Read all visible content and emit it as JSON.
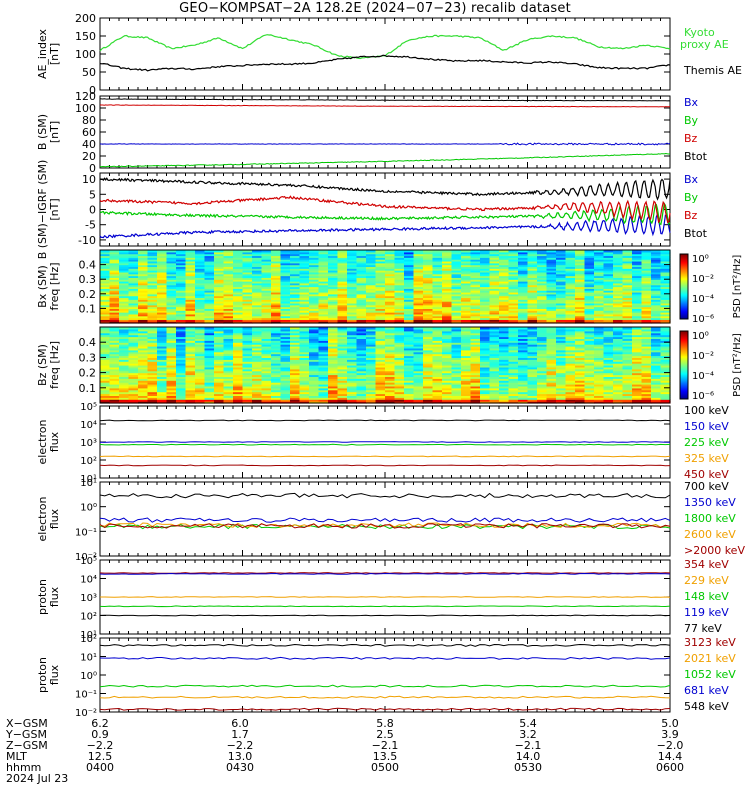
{
  "title": "GEO−KOMPSAT−2A 128.2E (2024−07−23) recalib dataset",
  "colors": {
    "black": "#000000",
    "green": "#00c800",
    "lightgreen": "#33ee33",
    "red": "#d00000",
    "blue": "#0000d0",
    "orange": "#f0a000",
    "darkred": "#a00000",
    "kyoto": "#33dd33"
  },
  "chart_data": [
    {
      "type": "line",
      "panel": "ae_index",
      "ylabel": "AE_index [nT]",
      "ylim": [
        0,
        200
      ],
      "yticks": [
        0,
        50,
        100,
        150,
        200
      ],
      "series": [
        {
          "name": "Kyoto proxy AE",
          "color": "#33dd33",
          "x": [
            0,
            5,
            10,
            15,
            20,
            25,
            30,
            35,
            40,
            45,
            50,
            55,
            60,
            65,
            70,
            75,
            80,
            85,
            90,
            95,
            100,
            105,
            110,
            115,
            120
          ],
          "y": [
            110,
            150,
            145,
            115,
            125,
            145,
            115,
            155,
            140,
            125,
            95,
            88,
            95,
            140,
            150,
            150,
            145,
            110,
            140,
            150,
            145,
            120,
            115,
            125,
            115
          ]
        },
        {
          "name": "Themis AE",
          "color": "#000000",
          "x": [
            0,
            5,
            10,
            15,
            20,
            25,
            30,
            35,
            40,
            45,
            50,
            55,
            60,
            65,
            70,
            75,
            80,
            85,
            90,
            95,
            100,
            105,
            110,
            115,
            120
          ],
          "y": [
            75,
            60,
            55,
            60,
            58,
            65,
            68,
            72,
            72,
            75,
            85,
            92,
            95,
            92,
            85,
            80,
            82,
            78,
            75,
            78,
            72,
            62,
            60,
            60,
            70
          ]
        }
      ]
    },
    {
      "type": "line",
      "panel": "b_sm",
      "ylabel": "B (SM) [nT]",
      "ylim": [
        0,
        120
      ],
      "yticks": [
        0,
        20,
        40,
        60,
        80,
        100,
        120
      ],
      "series": [
        {
          "name": "Bx",
          "color": "#0000d0",
          "x": [
            0,
            120
          ],
          "y": [
            40,
            40
          ]
        },
        {
          "name": "By",
          "color": "#00c800",
          "x": [
            0,
            30,
            60,
            90,
            120
          ],
          "y": [
            2,
            6,
            11,
            17,
            24
          ]
        },
        {
          "name": "Bz",
          "color": "#d00000",
          "x": [
            0,
            60,
            120
          ],
          "y": [
            105,
            103,
            102
          ]
        },
        {
          "name": "Btot",
          "color": "#000000",
          "x": [
            0,
            60,
            120
          ],
          "y": [
            115,
            113,
            112
          ]
        }
      ]
    },
    {
      "type": "line",
      "panel": "b_minus_igrf",
      "ylabel": "B (SM)−IGRF (SM) [nT]",
      "ylim": [
        -12,
        12
      ],
      "yticks": [
        -10,
        -5,
        0,
        5,
        10
      ],
      "series": [
        {
          "name": "Bx",
          "color": "#0000d0",
          "x": [
            0,
            20,
            40,
            60,
            80,
            100,
            120
          ],
          "y": [
            -9,
            -7.5,
            -7,
            -6.5,
            -6,
            -5.5,
            -5
          ]
        },
        {
          "name": "By",
          "color": "#00c800",
          "x": [
            0,
            20,
            40,
            60,
            80,
            100,
            120
          ],
          "y": [
            -1,
            -2,
            -2.5,
            -3,
            -2.5,
            -2,
            -1.5
          ]
        },
        {
          "name": "Bz",
          "color": "#d00000",
          "x": [
            0,
            20,
            40,
            60,
            80,
            100,
            120
          ],
          "y": [
            3,
            2,
            4,
            1,
            0,
            1,
            -1
          ]
        },
        {
          "name": "Btot",
          "color": "#000000",
          "x": [
            0,
            20,
            40,
            60,
            80,
            100,
            120
          ],
          "y": [
            10,
            9,
            8,
            6,
            5,
            6,
            7
          ]
        }
      ]
    },
    {
      "type": "heatmap",
      "panel": "bx_psd",
      "ylabel": "Bx (SM) freq [Hz]",
      "ylim": [
        0,
        0.5
      ],
      "yticks": [
        0.1,
        0.2,
        0.3,
        0.4
      ],
      "colorbar_label": "PSD [nT²/Hz]",
      "colorbar_ticks": [
        "10⁰",
        "10⁻²",
        "10⁻⁴",
        "10⁻⁶"
      ]
    },
    {
      "type": "heatmap",
      "panel": "bz_psd",
      "ylabel": "Bz (SM) freq [Hz]",
      "ylim": [
        0,
        0.5
      ],
      "yticks": [
        0.1,
        0.2,
        0.3,
        0.4
      ],
      "colorbar_label": "PSD [nT²/Hz]",
      "colorbar_ticks": [
        "10⁰",
        "10⁻²",
        "10⁻⁴",
        "10⁻⁶"
      ]
    },
    {
      "type": "line",
      "panel": "electron_flux_low",
      "ylabel": "electron flux",
      "ylog": [
        1,
        5
      ],
      "ytick_labels": [
        "10⁵",
        "10⁴",
        "10³",
        "10²",
        "10¹"
      ],
      "series": [
        {
          "name": "100 keV",
          "color": "#000000",
          "level": 4.2
        },
        {
          "name": "150 keV",
          "color": "#0000d0",
          "level": 3.0
        },
        {
          "name": "225 keV",
          "color": "#00c800",
          "level": 2.85
        },
        {
          "name": "325 keV",
          "color": "#f0a000",
          "level": 2.2
        },
        {
          "name": "450 keV",
          "color": "#a00000",
          "level": 1.7
        }
      ]
    },
    {
      "type": "line",
      "panel": "electron_flux_high",
      "ylabel": "electron flux",
      "ylog": [
        -2,
        1
      ],
      "ytick_labels": [
        "10¹",
        "10⁰",
        "10⁻¹",
        "10⁻²"
      ],
      "series": [
        {
          "name": "700 keV",
          "color": "#000000",
          "level": 0.45
        },
        {
          "name": "1350 keV",
          "color": "#0000d0",
          "level": -0.55
        },
        {
          "name": "1800 keV",
          "color": "#00c800",
          "level": -0.8
        },
        {
          "name": "2600 keV",
          "color": "#f0a000",
          "level": -0.75
        },
        {
          "name": ">2000 keV",
          "color": "#a00000",
          "level": -0.78
        }
      ]
    },
    {
      "type": "line",
      "panel": "proton_flux_high",
      "ylabel": "proton flux",
      "ylog": [
        1,
        5
      ],
      "ytick_labels": [
        "10⁵",
        "10⁴",
        "10³",
        "10²",
        "10¹"
      ],
      "series": [
        {
          "name": "354 keV",
          "color": "#a00000",
          "level": 4.3
        },
        {
          "name": "229 keV",
          "color": "#f0a000",
          "level": 3.0
        },
        {
          "name": "148 keV",
          "color": "#00c800",
          "level": 2.5
        },
        {
          "name": "119 keV",
          "color": "#0000d0",
          "level": 4.25
        },
        {
          "name": "77 keV",
          "color": "#000000",
          "level": 2.0
        }
      ]
    },
    {
      "type": "line",
      "panel": "proton_flux_low",
      "ylabel": "proton flux",
      "ylog": [
        -2,
        2
      ],
      "ytick_labels": [
        "10²",
        "10¹",
        "10⁰",
        "10⁻¹",
        "10⁻²"
      ],
      "series": [
        {
          "name": "3123 keV",
          "color": "#a00000",
          "level": -1.85
        },
        {
          "name": "2021 keV",
          "color": "#f0a000",
          "level": -1.2
        },
        {
          "name": "1052 keV",
          "color": "#00c800",
          "level": -0.6
        },
        {
          "name": "681 keV",
          "color": "#0000d0",
          "level": 0.9
        },
        {
          "name": "548 keV",
          "color": "#000000",
          "level": 1.6
        }
      ]
    }
  ],
  "xaxis": {
    "row_labels": [
      "X−GSM",
      "Y−GSM",
      "Z−GSM",
      "MLT",
      "hhmm",
      "2024 Jul 23"
    ],
    "ticks": [
      {
        "x": [
          "6.2",
          "0.9",
          "−2.2",
          "12.5",
          "0400"
        ]
      },
      {
        "x": [
          "6.0",
          "1.7",
          "−2.2",
          "13.0",
          "0430"
        ]
      },
      {
        "x": [
          "5.8",
          "2.5",
          "−2.1",
          "13.5",
          "0500"
        ]
      },
      {
        "x": [
          "5.4",
          "3.2",
          "−2.1",
          "14.0",
          "0530"
        ]
      },
      {
        "x": [
          "5.0",
          "3.9",
          "−2.0",
          "14.4",
          "0600"
        ]
      }
    ]
  }
}
